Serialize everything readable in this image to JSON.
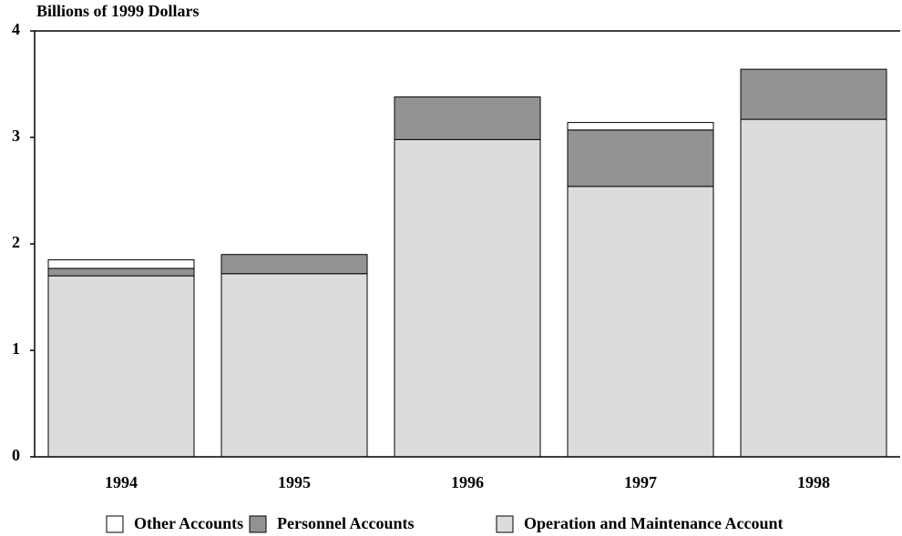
{
  "chart_data": {
    "type": "stacked_bar",
    "title": "Billions of 1999 Dollars",
    "categories": [
      "1994",
      "1995",
      "1996",
      "1997",
      "1998"
    ],
    "series": [
      {
        "name": "Operation and Maintenance Account",
        "color": "#dcdcdc",
        "values": [
          1.7,
          1.72,
          2.98,
          2.54,
          3.17
        ]
      },
      {
        "name": "Personnel Accounts",
        "color": "#939393",
        "values": [
          0.07,
          0.18,
          0.4,
          0.53,
          0.47
        ]
      },
      {
        "name": "Other Accounts",
        "color": "#ffffff",
        "values": [
          0.08,
          0,
          0,
          0.07,
          0
        ]
      }
    ],
    "ylim": [
      0,
      4
    ],
    "yticks": [
      0,
      1,
      2,
      3,
      4
    ],
    "legend": "bottom"
  }
}
